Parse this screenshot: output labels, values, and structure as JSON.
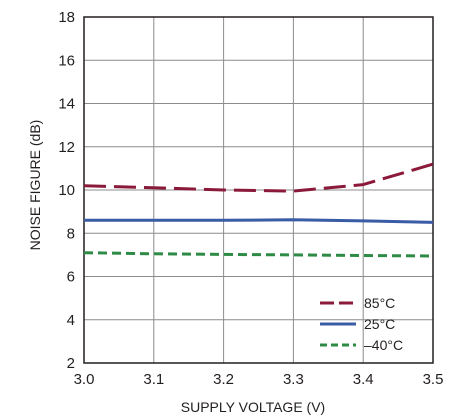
{
  "chart_data": {
    "type": "line",
    "title": "",
    "xlabel": "SUPPLY VOLTAGE (V)",
    "ylabel": "NOISE FIGURE (dB)",
    "xlim": [
      3.0,
      3.5
    ],
    "ylim": [
      2,
      18
    ],
    "xticks": [
      "3.0",
      "3.1",
      "3.2",
      "3.3",
      "3.4",
      "3.5"
    ],
    "yticks": [
      "2",
      "4",
      "6",
      "8",
      "10",
      "12",
      "14",
      "16",
      "18"
    ],
    "grid": true,
    "legend_position": "bottom-right",
    "x": [
      3.0,
      3.1,
      3.2,
      3.3,
      3.4,
      3.5
    ],
    "series": [
      {
        "name": "85°C",
        "color": "#8b1a3a",
        "dash": "dashed",
        "values": [
          10.2,
          10.1,
          10.0,
          9.95,
          10.25,
          11.2
        ]
      },
      {
        "name": "25°C",
        "color": "#3a5ba6",
        "dash": "solid",
        "values": [
          8.6,
          8.6,
          8.6,
          8.62,
          8.57,
          8.5
        ]
      },
      {
        "name": "–40°C",
        "color": "#2e8b46",
        "dash": "dotted",
        "values": [
          7.1,
          7.05,
          7.02,
          7.0,
          6.97,
          6.95
        ]
      }
    ]
  }
}
